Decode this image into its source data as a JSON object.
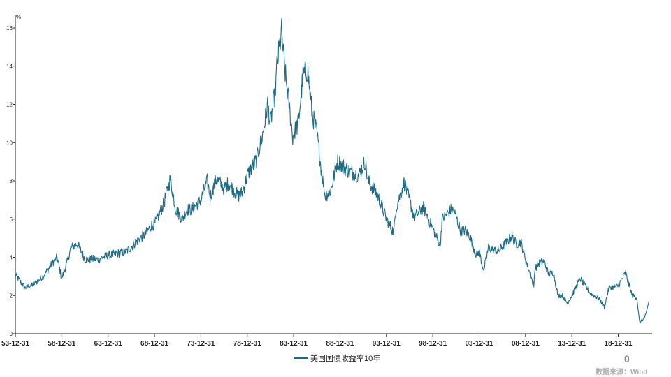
{
  "chart_data": {
    "type": "line",
    "unit_label": "%",
    "series": [
      {
        "name": "美国国债收益率10年",
        "color": "#1e6b86",
        "x": [
          1953.0,
          1954.0,
          1955.0,
          1956.0,
          1957.0,
          1957.5,
          1958.0,
          1958.5,
          1959.0,
          1959.7,
          1960.5,
          1961.0,
          1962.0,
          1963.0,
          1964.0,
          1965.0,
          1966.0,
          1967.0,
          1967.7,
          1968.0,
          1969.0,
          1969.7,
          1970.3,
          1971.0,
          1971.5,
          1972.0,
          1973.0,
          1973.7,
          1974.0,
          1974.7,
          1975.5,
          1976.0,
          1977.0,
          1977.5,
          1978.0,
          1979.0,
          1979.7,
          1980.2,
          1980.5,
          1981.0,
          1981.2,
          1981.7,
          1982.0,
          1982.5,
          1982.9,
          1983.5,
          1984.0,
          1984.5,
          1985.0,
          1985.5,
          1986.0,
          1986.4,
          1987.0,
          1987.7,
          1988.0,
          1989.0,
          1990.0,
          1990.7,
          1991.0,
          1992.0,
          1993.0,
          1993.8,
          1994.0,
          1994.9,
          1995.0,
          1996.0,
          1997.0,
          1998.0,
          1998.8,
          1999.0,
          2000.0,
          2000.3,
          2001.0,
          2001.5,
          2002.0,
          2002.7,
          2003.0,
          2003.5,
          2004.0,
          2005.0,
          2006.0,
          2006.5,
          2007.0,
          2007.5,
          2008.0,
          2008.9,
          2009.0,
          2009.5,
          2010.0,
          2010.5,
          2011.0,
          2011.5,
          2012.0,
          2012.5,
          2013.0,
          2013.9,
          2014.0,
          2015.0,
          2016.0,
          2016.5,
          2017.0,
          2018.0,
          2018.8,
          2019.0,
          2019.5,
          2020.0,
          2020.3,
          2020.6,
          2021.0,
          2021.3
        ],
        "y": [
          3.1,
          2.4,
          2.6,
          3.0,
          3.7,
          4.0,
          2.9,
          3.6,
          4.5,
          4.7,
          3.9,
          3.9,
          3.9,
          4.1,
          4.2,
          4.3,
          4.8,
          5.2,
          5.7,
          5.7,
          6.8,
          8.1,
          6.5,
          6.0,
          6.5,
          6.5,
          7.0,
          8.0,
          7.2,
          8.1,
          7.6,
          7.9,
          7.2,
          7.4,
          8.3,
          9.1,
          10.5,
          12.0,
          11.0,
          12.6,
          14.0,
          15.8,
          14.0,
          12.0,
          10.3,
          11.0,
          13.5,
          13.8,
          11.5,
          10.5,
          8.5,
          7.2,
          7.5,
          9.0,
          8.9,
          8.5,
          8.3,
          9.0,
          8.0,
          7.3,
          6.0,
          5.3,
          6.5,
          7.9,
          7.8,
          6.1,
          6.6,
          5.5,
          4.6,
          6.0,
          6.5,
          6.4,
          5.4,
          5.4,
          5.1,
          4.1,
          4.3,
          3.3,
          4.5,
          4.3,
          4.8,
          5.1,
          4.7,
          4.8,
          3.9,
          2.5,
          3.4,
          3.7,
          3.8,
          3.1,
          3.2,
          2.0,
          2.0,
          1.6,
          2.0,
          2.9,
          2.8,
          2.1,
          1.8,
          1.4,
          2.4,
          2.5,
          3.2,
          2.8,
          2.0,
          1.9,
          0.6,
          0.7,
          1.0,
          1.7
        ]
      }
    ],
    "xlim": [
      1953.0,
      2021.5
    ],
    "ylim": [
      0,
      16
    ],
    "yticks": [
      0,
      2,
      4,
      6,
      8,
      10,
      12,
      14,
      16
    ],
    "xticks": [
      {
        "value": 1953.0,
        "label": "53-12-31"
      },
      {
        "value": 1958.0,
        "label": "58-12-31"
      },
      {
        "value": 1963.0,
        "label": "63-12-31"
      },
      {
        "value": 1968.0,
        "label": "68-12-31"
      },
      {
        "value": 1973.0,
        "label": "73-12-31"
      },
      {
        "value": 1978.0,
        "label": "78-12-31"
      },
      {
        "value": 1983.0,
        "label": "83-12-31"
      },
      {
        "value": 1988.0,
        "label": "88-12-31"
      },
      {
        "value": 1993.0,
        "label": "93-12-31"
      },
      {
        "value": 1998.0,
        "label": "98-12-31"
      },
      {
        "value": 2003.0,
        "label": "03-12-31"
      },
      {
        "value": 2008.0,
        "label": "08-12-31"
      },
      {
        "value": 2013.0,
        "label": "13-12-31"
      },
      {
        "value": 2018.0,
        "label": "18-12-31"
      }
    ],
    "grid": false,
    "legend_position": "bottom-center"
  },
  "watermark": {
    "number": "0",
    "source": "数据来源：Wind"
  }
}
